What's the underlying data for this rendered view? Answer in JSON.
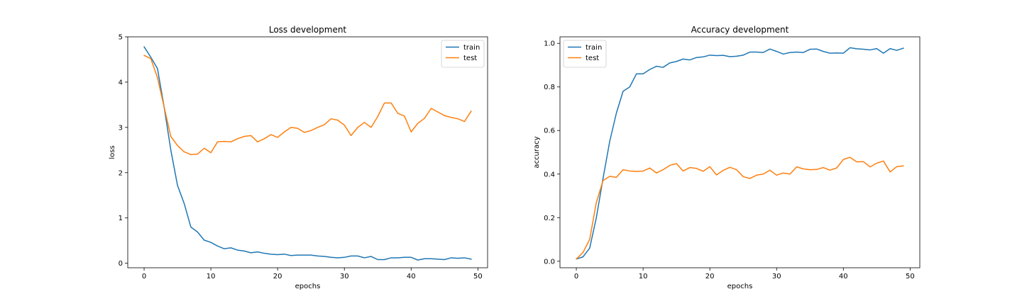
{
  "colors": {
    "train": "#1f77b4",
    "test": "#ff7f0e"
  },
  "chart_data": [
    {
      "type": "line",
      "title": "Loss development",
      "xlabel": "epochs",
      "ylabel": "loss",
      "xlim": [
        -2.45,
        51.45
      ],
      "ylim": [
        -0.1,
        5.0
      ],
      "xticks": [
        0,
        10,
        20,
        30,
        40,
        50
      ],
      "yticks": [
        0,
        1,
        2,
        3,
        4,
        5
      ],
      "legend": "upper right",
      "grid": false,
      "series": [
        {
          "name": "train",
          "color": "#1f77b4",
          "x": [
            0,
            1,
            2,
            3,
            4,
            5,
            6,
            7,
            8,
            9,
            10,
            11,
            12,
            13,
            14,
            15,
            16,
            17,
            18,
            19,
            20,
            21,
            22,
            23,
            24,
            25,
            26,
            27,
            28,
            29,
            30,
            31,
            32,
            33,
            34,
            35,
            36,
            37,
            38,
            39,
            40,
            41,
            42,
            43,
            44,
            45,
            46,
            47,
            48,
            49
          ],
          "values": [
            4.78,
            4.55,
            4.3,
            3.45,
            2.5,
            1.72,
            1.32,
            0.8,
            0.69,
            0.51,
            0.46,
            0.38,
            0.32,
            0.34,
            0.29,
            0.27,
            0.23,
            0.25,
            0.22,
            0.2,
            0.19,
            0.2,
            0.17,
            0.18,
            0.18,
            0.18,
            0.16,
            0.15,
            0.13,
            0.12,
            0.13,
            0.16,
            0.16,
            0.12,
            0.15,
            0.08,
            0.08,
            0.12,
            0.12,
            0.13,
            0.13,
            0.07,
            0.1,
            0.1,
            0.09,
            0.08,
            0.12,
            0.11,
            0.12,
            0.09
          ]
        },
        {
          "name": "test",
          "color": "#ff7f0e",
          "x": [
            0,
            1,
            2,
            3,
            4,
            5,
            6,
            7,
            8,
            9,
            10,
            11,
            12,
            13,
            14,
            15,
            16,
            17,
            18,
            19,
            20,
            21,
            22,
            23,
            24,
            25,
            26,
            27,
            28,
            29,
            30,
            31,
            32,
            33,
            34,
            35,
            36,
            37,
            38,
            39,
            40,
            41,
            42,
            43,
            44,
            45,
            46,
            47,
            48,
            49
          ],
          "values": [
            4.59,
            4.52,
            4.1,
            3.45,
            2.8,
            2.6,
            2.46,
            2.4,
            2.41,
            2.54,
            2.44,
            2.68,
            2.69,
            2.68,
            2.75,
            2.8,
            2.82,
            2.68,
            2.75,
            2.84,
            2.78,
            2.9,
            3.0,
            2.98,
            2.89,
            2.93,
            3.0,
            3.06,
            3.19,
            3.16,
            3.05,
            2.82,
            3.0,
            3.11,
            3.0,
            3.24,
            3.54,
            3.54,
            3.31,
            3.25,
            2.9,
            3.09,
            3.2,
            3.42,
            3.34,
            3.26,
            3.22,
            3.19,
            3.13,
            3.36
          ]
        }
      ]
    },
    {
      "type": "line",
      "title": "Accuracy development",
      "xlabel": "epochs",
      "ylabel": "accuracy",
      "xlim": [
        -2.45,
        51.45
      ],
      "ylim": [
        -0.03,
        1.03
      ],
      "xticks": [
        0,
        10,
        20,
        30,
        40,
        50
      ],
      "yticks": [
        0.0,
        0.2,
        0.4,
        0.6,
        0.8,
        1.0
      ],
      "legend": "upper left",
      "grid": false,
      "series": [
        {
          "name": "train",
          "color": "#1f77b4",
          "x": [
            0,
            1,
            2,
            3,
            4,
            5,
            6,
            7,
            8,
            9,
            10,
            11,
            12,
            13,
            14,
            15,
            16,
            17,
            18,
            19,
            20,
            21,
            22,
            23,
            24,
            25,
            26,
            27,
            28,
            29,
            30,
            31,
            32,
            33,
            34,
            35,
            36,
            37,
            38,
            39,
            40,
            41,
            42,
            43,
            44,
            45,
            46,
            47,
            48,
            49
          ],
          "values": [
            0.01,
            0.02,
            0.06,
            0.2,
            0.38,
            0.55,
            0.68,
            0.78,
            0.8,
            0.86,
            0.86,
            0.88,
            0.895,
            0.89,
            0.91,
            0.917,
            0.928,
            0.924,
            0.935,
            0.938,
            0.946,
            0.944,
            0.945,
            0.939,
            0.941,
            0.946,
            0.96,
            0.96,
            0.958,
            0.974,
            0.963,
            0.951,
            0.958,
            0.96,
            0.958,
            0.973,
            0.974,
            0.963,
            0.955,
            0.956,
            0.955,
            0.98,
            0.975,
            0.973,
            0.97,
            0.976,
            0.955,
            0.976,
            0.968,
            0.978
          ]
        },
        {
          "name": "test",
          "color": "#ff7f0e",
          "x": [
            0,
            1,
            2,
            3,
            4,
            5,
            6,
            7,
            8,
            9,
            10,
            11,
            12,
            13,
            14,
            15,
            16,
            17,
            18,
            19,
            20,
            21,
            22,
            23,
            24,
            25,
            26,
            27,
            28,
            29,
            30,
            31,
            32,
            33,
            34,
            35,
            36,
            37,
            38,
            39,
            40,
            41,
            42,
            43,
            44,
            45,
            46,
            47,
            48,
            49
          ],
          "values": [
            0.01,
            0.04,
            0.1,
            0.27,
            0.37,
            0.39,
            0.385,
            0.42,
            0.414,
            0.412,
            0.414,
            0.428,
            0.405,
            0.42,
            0.44,
            0.448,
            0.414,
            0.43,
            0.426,
            0.413,
            0.434,
            0.396,
            0.417,
            0.431,
            0.42,
            0.388,
            0.38,
            0.395,
            0.4,
            0.418,
            0.395,
            0.405,
            0.4,
            0.433,
            0.424,
            0.42,
            0.421,
            0.43,
            0.418,
            0.428,
            0.467,
            0.477,
            0.456,
            0.457,
            0.433,
            0.45,
            0.46,
            0.41,
            0.434,
            0.438
          ]
        }
      ]
    }
  ]
}
